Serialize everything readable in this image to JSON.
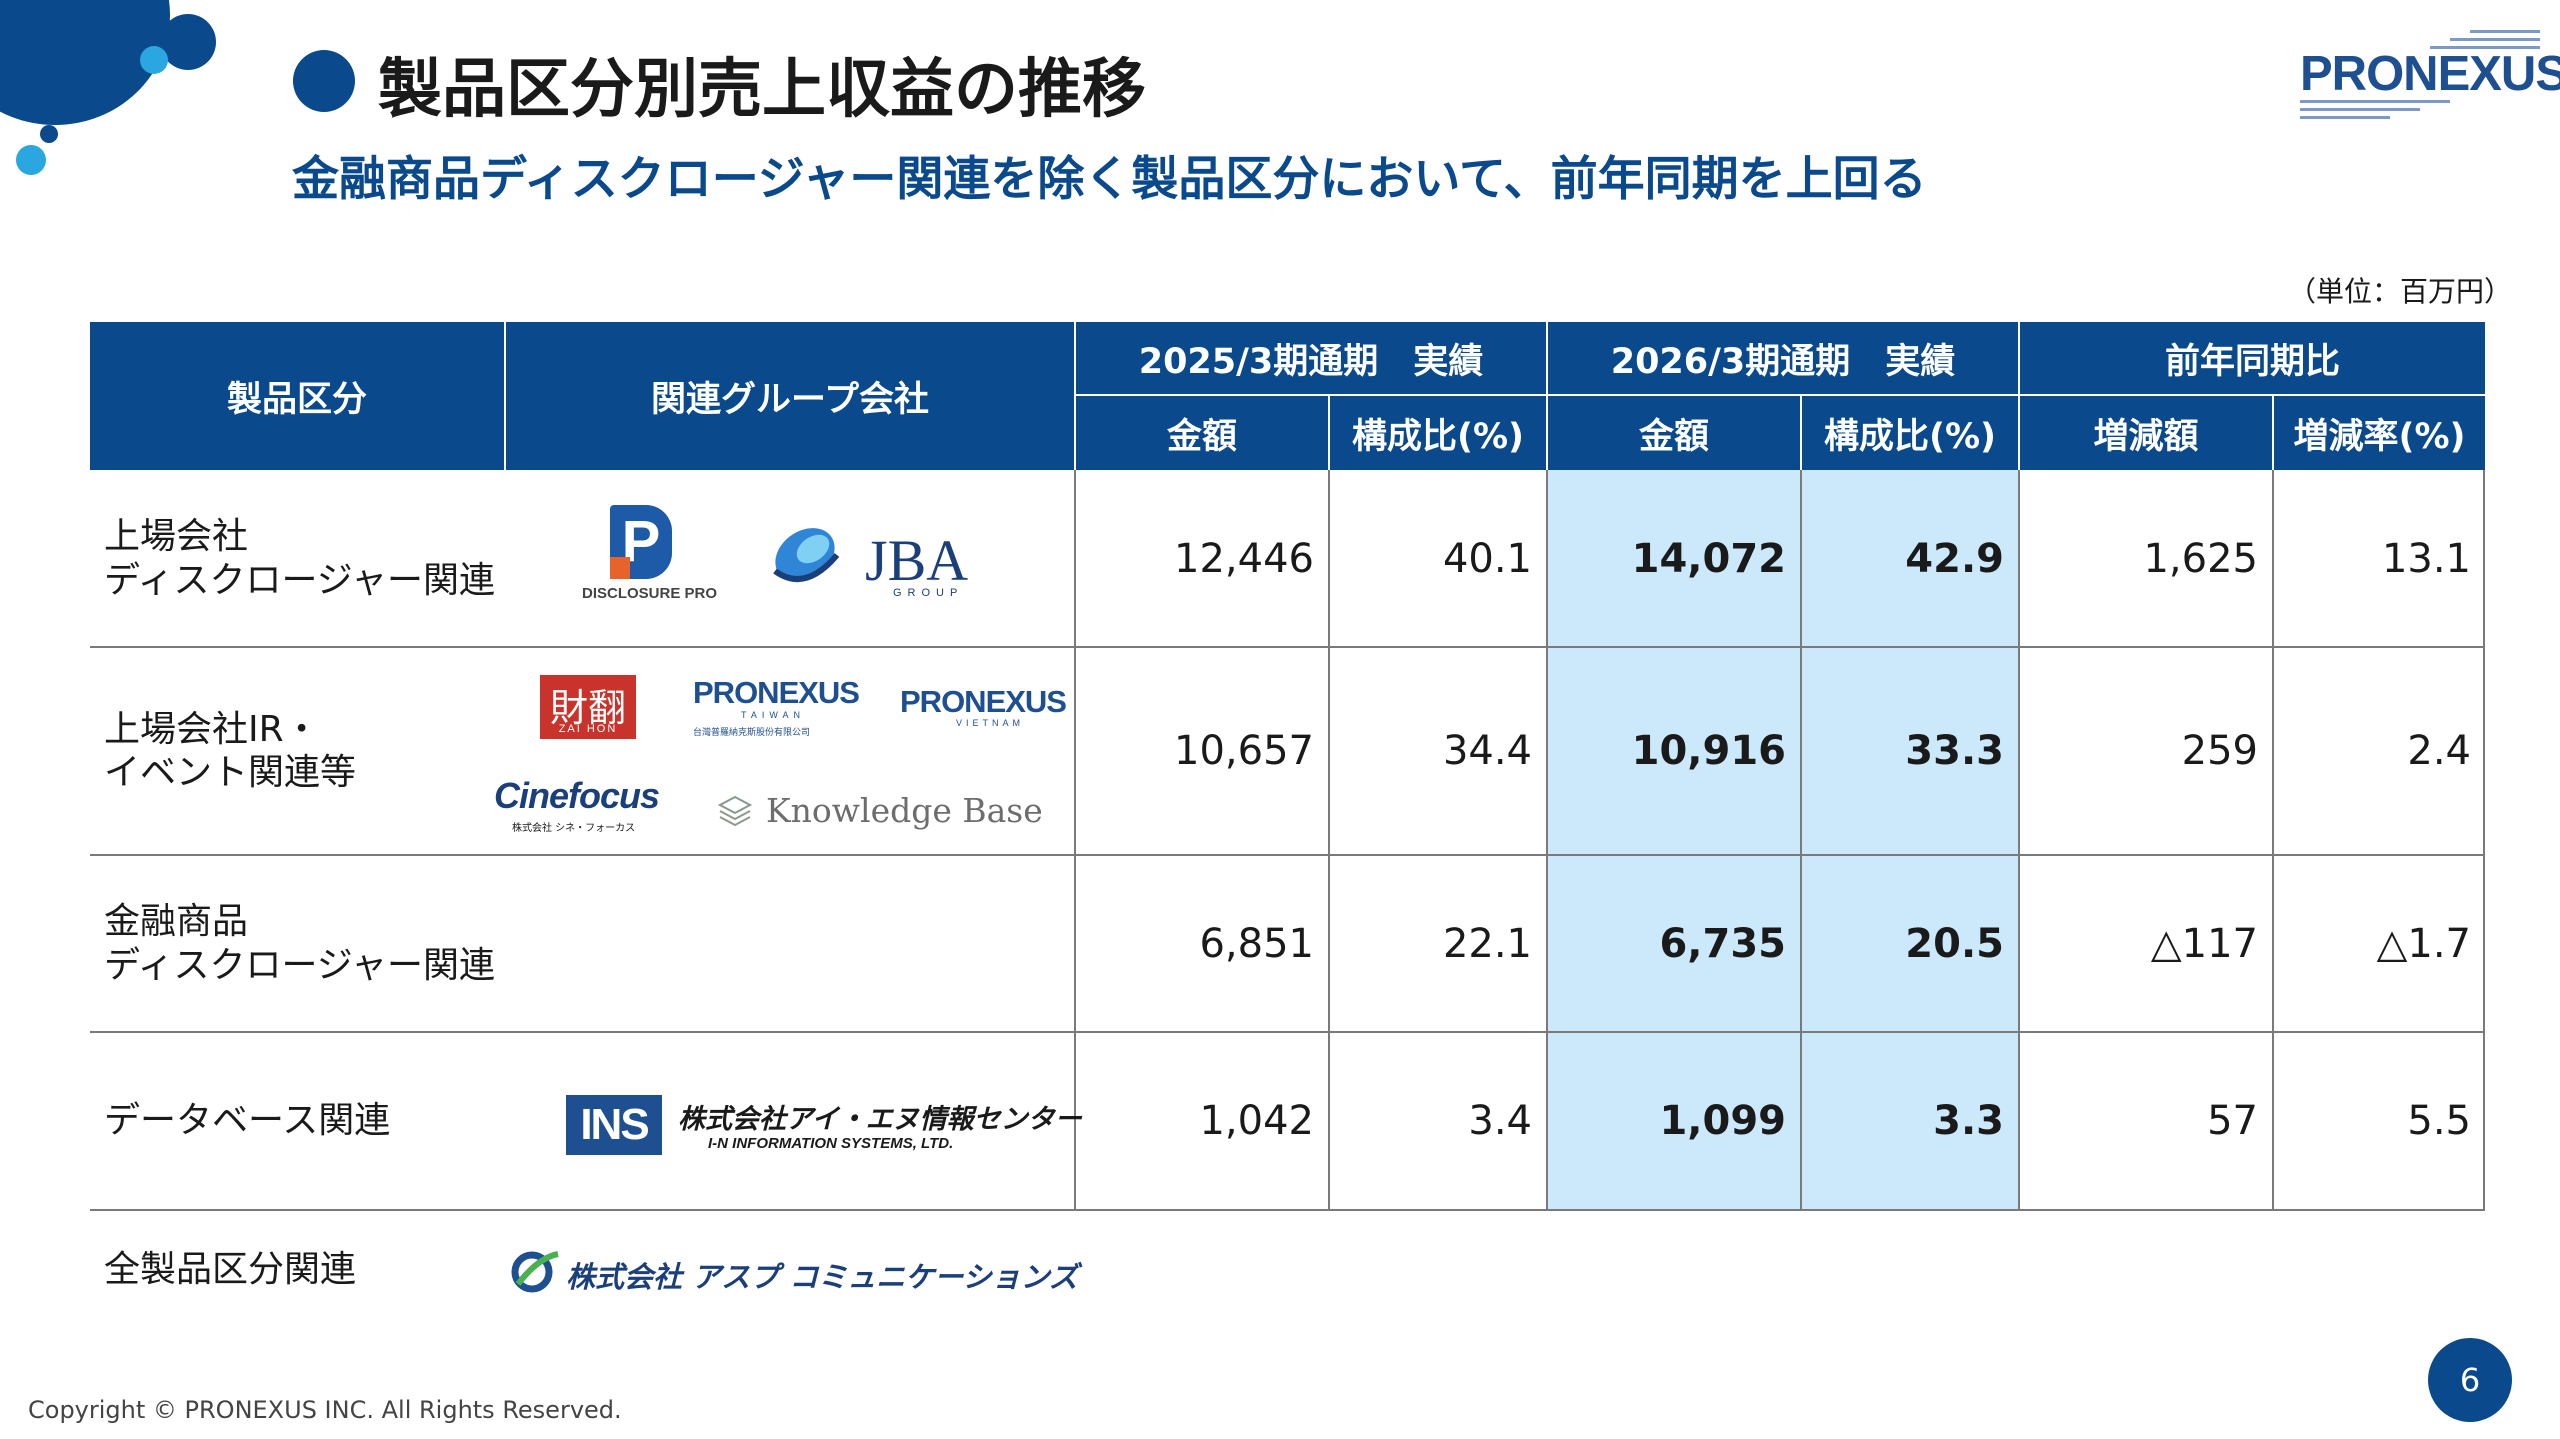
{
  "slide": {
    "title": "製品区分別売上収益の推移",
    "subtitle": "金融商品ディスクロージャー関連を除く製品区分において、前年同期を上回る",
    "brand": "PRONEXUS",
    "unit": "（単位：百万円）",
    "copyright": "Copyright © PRONEXUS INC. All Rights Reserved.",
    "page_number": "6",
    "accent_color": "#0a4a8c",
    "highlight_color": "#cce9fb"
  },
  "table": {
    "headers": {
      "category": "製品区分",
      "group": "関連グループ会社",
      "period_2025": "2025/3期通期　実績",
      "period_2026": "2026/3期通期　実績",
      "yoy": "前年同期比",
      "amount": "金額",
      "ratio": "構成比(%)",
      "change": "増減額",
      "change_rate": "増減率(%)"
    },
    "rows": [
      {
        "category": "上場会社\nディスクロージャー関連",
        "amt_2025": "12,446",
        "ratio_2025": "40.1",
        "amt_2026": "14,072",
        "ratio_2026": "42.9",
        "change": "1,625",
        "change_rate": "13.1"
      },
      {
        "category": "上場会社IR・\nイベント関連等",
        "amt_2025": "10,657",
        "ratio_2025": "34.4",
        "amt_2026": "10,916",
        "ratio_2026": "33.3",
        "change": "259",
        "change_rate": "2.4"
      },
      {
        "category": "金融商品\nディスクロージャー関連",
        "amt_2025": "6,851",
        "ratio_2025": "22.1",
        "amt_2026": "6,735",
        "ratio_2026": "20.5",
        "change": "△117",
        "change_rate": "△1.7"
      },
      {
        "category": "データベース関連",
        "amt_2025": "1,042",
        "ratio_2025": "3.4",
        "amt_2026": "1,099",
        "ratio_2026": "3.3",
        "change": "57",
        "change_rate": "5.5"
      }
    ],
    "footer_category": "全製品区分関連"
  },
  "logos": {
    "disclosure_pro": {
      "mark": "P",
      "text": "DISCLOSURE PRO"
    },
    "jba": {
      "text": "JBA",
      "sub": "GROUP"
    },
    "zaihon": {
      "mark": "財翻",
      "sub": "ZAI HON"
    },
    "pronexus_taiwan": {
      "text": "PRONEXUS",
      "sub": "TAIWAN",
      "tagline": "台灣普羅納克斯股份有限公司"
    },
    "pronexus_vietnam": {
      "text": "PRONEXUS",
      "sub": "VIETNAM"
    },
    "cinefocus": {
      "text": "Cinefocus",
      "sub": "株式会社 シネ・フォーカス"
    },
    "knowledge_base": {
      "text": "Knowledge Base"
    },
    "in_info": {
      "mark": "INS",
      "text": "株式会社アイ・エヌ情報センター",
      "sub": "I-N INFORMATION SYSTEMS, LTD."
    },
    "asp": {
      "text": "株式会社 アスプ コミュニケーションズ"
    }
  }
}
